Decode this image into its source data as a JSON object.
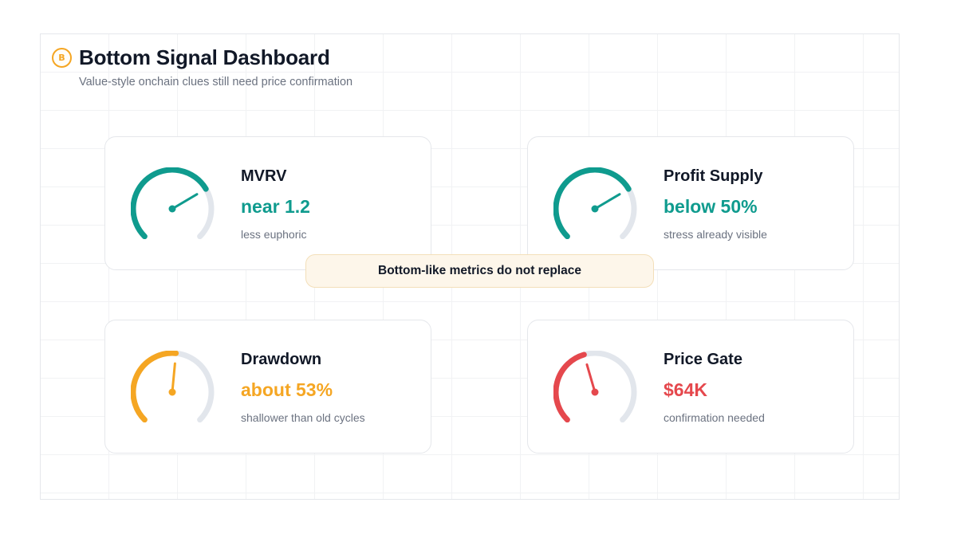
{
  "header": {
    "logo_glyph": "B",
    "title": "Bottom Signal Dashboard",
    "subtitle": "Value-style onchain clues still need price confirmation"
  },
  "callout": {
    "text": "Bottom-like metrics do not replace"
  },
  "cards": [
    {
      "name": "MVRV",
      "value": "near 1.2",
      "note": "less euphoric",
      "accent": "#0f9b8e",
      "gauge_level": 0.72
    },
    {
      "name": "Profit Supply",
      "value": "below 50%",
      "note": "stress already visible",
      "accent": "#0f9b8e",
      "gauge_level": 0.72
    },
    {
      "name": "Drawdown",
      "value": "about 53%",
      "note": "shallower than old cycles",
      "accent": "#f5a623",
      "gauge_level": 0.52
    },
    {
      "name": "Price Gate",
      "value": "$64K",
      "note": "confirmation needed",
      "accent": "#e5484d",
      "gauge_level": 0.44
    }
  ],
  "colors": {
    "track": "#e2e6ec",
    "title": "#111827",
    "muted": "#6b7280"
  }
}
